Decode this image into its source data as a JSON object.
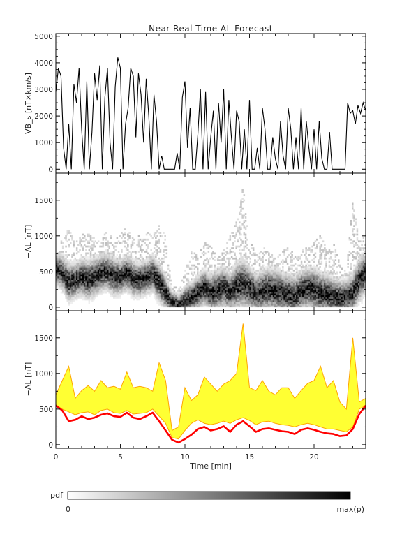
{
  "title": "Near Real Time AL Forecast",
  "colorbar": {
    "label": "pdf",
    "min_label": "0",
    "max_label": "max(p)",
    "colors": [
      "#ffffff",
      "#000000"
    ]
  },
  "colors": {
    "vbs_line": "#000000",
    "forecast_band": "#ffff33",
    "forecast_band_edge": "#ffa500",
    "forecast_median": "#ff0000"
  },
  "chart_data": [
    {
      "type": "line",
      "title": "Near Real Time AL Forecast",
      "ylabel": "VB_s [nT×km/s]",
      "xlabel": "",
      "xlim": [
        0,
        24
      ],
      "ylim": [
        -150,
        5100
      ],
      "yticks": [
        "0",
        "1000",
        "2000",
        "3000",
        "4000",
        "5000"
      ],
      "grid": false,
      "series": [
        {
          "x": [
            0,
            0.2,
            0.4,
            0.6,
            0.8,
            1.0,
            1.2,
            1.4,
            1.6,
            1.8,
            2.0,
            2.2,
            2.4,
            2.6,
            2.8,
            3.0,
            3.2,
            3.4,
            3.6,
            3.8,
            4.0,
            4.2,
            4.4,
            4.6,
            4.8,
            5.0,
            5.2,
            5.4,
            5.6,
            5.8,
            6.0,
            6.2,
            6.4,
            6.6,
            6.8,
            7.0,
            7.2,
            7.4,
            7.6,
            7.8,
            8.0,
            8.2,
            8.4,
            8.6,
            8.8,
            9.0,
            9.2,
            9.4,
            9.6,
            9.8,
            10.0,
            10.2,
            10.4,
            10.6,
            10.8,
            11.0,
            11.2,
            11.4,
            11.6,
            11.8,
            12.0,
            12.2,
            12.4,
            12.6,
            12.8,
            13.0,
            13.2,
            13.4,
            13.6,
            13.8,
            14.0,
            14.2,
            14.4,
            14.6,
            14.8,
            15.0,
            15.2,
            15.4,
            15.6,
            15.8,
            16.0,
            16.2,
            16.4,
            16.6,
            16.8,
            17.0,
            17.2,
            17.4,
            17.6,
            17.8,
            18.0,
            18.2,
            18.4,
            18.6,
            18.8,
            19.0,
            19.2,
            19.4,
            19.6,
            19.8,
            20.0,
            20.2,
            20.4,
            20.6,
            20.8,
            21.0,
            21.2,
            21.4,
            21.6,
            21.8,
            22.0,
            22.2,
            22.4,
            22.6,
            22.8,
            23.0,
            23.2,
            23.4,
            23.6,
            23.8,
            24.0
          ],
          "values": [
            2900,
            3800,
            3500,
            800,
            0,
            1700,
            0,
            3200,
            2500,
            3800,
            1500,
            0,
            3300,
            0,
            1400,
            3600,
            2600,
            3900,
            0,
            2700,
            3800,
            1000,
            0,
            3100,
            4200,
            3800,
            0,
            1700,
            2300,
            3800,
            3500,
            1200,
            3600,
            2800,
            1000,
            3400,
            2000,
            0,
            2800,
            1800,
            0,
            500,
            0,
            0,
            0,
            0,
            0,
            600,
            0,
            2700,
            3300,
            800,
            2300,
            0,
            0,
            1300,
            3000,
            0,
            2900,
            0,
            1200,
            2200,
            0,
            2500,
            1000,
            3000,
            0,
            2600,
            1200,
            0,
            2200,
            1800,
            0,
            1500,
            0,
            2600,
            0,
            0,
            800,
            0,
            2300,
            1500,
            0,
            0,
            1200,
            400,
            0,
            1800,
            500,
            0,
            2300,
            1500,
            0,
            1200,
            0,
            2300,
            0,
            1800,
            800,
            0,
            1500,
            0,
            1800,
            400,
            0,
            0,
            1400,
            0,
            0,
            0,
            0,
            0,
            0,
            2500,
            2100,
            2200,
            1700,
            2400,
            2100,
            2500,
            2200
          ]
        }
      ]
    },
    {
      "type": "heatmap",
      "ylabel": "−AL [nT]",
      "xlabel": "",
      "xlim": [
        0,
        24
      ],
      "ylim": [
        -50,
        1880
      ],
      "yticks": [
        "0",
        "500",
        "1000",
        "1500"
      ],
      "grid": false,
      "colorscale": [
        "#ffffff",
        "#000000"
      ],
      "x": [
        0,
        0.5,
        1.0,
        1.5,
        2.0,
        2.5,
        3.0,
        3.5,
        4.0,
        4.5,
        5.0,
        5.5,
        6.0,
        6.5,
        7.0,
        7.5,
        8.0,
        8.5,
        9.0,
        9.5,
        10.0,
        10.5,
        11.0,
        11.5,
        12.0,
        12.5,
        13.0,
        13.5,
        14.0,
        14.5,
        15.0,
        15.5,
        16.0,
        16.5,
        17.0,
        17.5,
        18.0,
        18.5,
        19.0,
        19.5,
        20.0,
        20.5,
        21.0,
        21.5,
        22.0,
        22.5,
        23.0,
        23.5,
        24.0
      ],
      "center": [
        540,
        480,
        350,
        380,
        420,
        380,
        420,
        480,
        500,
        430,
        420,
        480,
        400,
        380,
        420,
        470,
        350,
        200,
        70,
        30,
        90,
        130,
        200,
        280,
        200,
        230,
        280,
        200,
        300,
        330,
        270,
        180,
        230,
        250,
        230,
        200,
        180,
        150,
        230,
        260,
        240,
        200,
        180,
        150,
        130,
        140,
        200,
        380,
        480
      ],
      "spread": [
        200,
        220,
        250,
        230,
        240,
        250,
        250,
        240,
        240,
        250,
        220,
        230,
        240,
        220,
        220,
        230,
        250,
        220,
        150,
        130,
        180,
        200,
        220,
        230,
        250,
        260,
        260,
        240,
        300,
        320,
        270,
        250,
        270,
        280,
        280,
        270,
        260,
        260,
        260,
        270,
        280,
        270,
        260,
        240,
        230,
        220,
        260,
        280,
        260
      ],
      "peak": [
        700,
        1000,
        1100,
        900,
        1000,
        1050,
        1000,
        900,
        1100,
        900,
        1050,
        1100,
        950,
        1000,
        1050,
        1000,
        1150,
        1000,
        300,
        250,
        500,
        800,
        750,
        900,
        850,
        700,
        800,
        1000,
        1200,
        1700,
        900,
        800,
        850,
        750,
        700,
        800,
        900,
        700,
        800,
        850,
        900,
        1000,
        800,
        900,
        600,
        500,
        1500,
        900,
        1000
      ]
    },
    {
      "type": "area",
      "xlabel": "Time [min]",
      "ylabel": "−AL [nT]",
      "xlim": [
        0,
        24
      ],
      "ylim": [
        -50,
        1880
      ],
      "xticks": [
        "0",
        "5",
        "10",
        "15",
        "20"
      ],
      "yticks": [
        "0",
        "500",
        "1000",
        "1500"
      ],
      "grid": false,
      "x": [
        0,
        0.5,
        1.0,
        1.5,
        2.0,
        2.5,
        3.0,
        3.5,
        4.0,
        4.5,
        5.0,
        5.5,
        6.0,
        6.5,
        7.0,
        7.5,
        8.0,
        8.5,
        9.0,
        9.5,
        10.0,
        10.5,
        11.0,
        11.5,
        12.0,
        12.5,
        13.0,
        13.5,
        14.0,
        14.5,
        15.0,
        15.5,
        16.0,
        16.5,
        17.0,
        17.5,
        18.0,
        18.5,
        19.0,
        19.5,
        20.0,
        20.5,
        21.0,
        21.5,
        22.0,
        22.5,
        23.0,
        23.5,
        24.0
      ],
      "series": [
        {
          "role": "upper",
          "values": [
            700,
            900,
            1100,
            650,
            760,
            830,
            750,
            900,
            800,
            820,
            780,
            1020,
            800,
            820,
            800,
            750,
            1150,
            900,
            200,
            250,
            800,
            620,
            700,
            950,
            850,
            750,
            850,
            900,
            1000,
            1700,
            800,
            760,
            900,
            750,
            700,
            800,
            800,
            650,
            760,
            860,
            900,
            1100,
            800,
            900,
            600,
            500,
            1500,
            600,
            650
          ]
        },
        {
          "role": "lower",
          "values": [
            560,
            500,
            460,
            420,
            450,
            460,
            420,
            480,
            500,
            450,
            440,
            480,
            430,
            440,
            450,
            500,
            400,
            300,
            100,
            80,
            200,
            300,
            350,
            300,
            280,
            300,
            330,
            300,
            350,
            380,
            340,
            280,
            320,
            330,
            300,
            280,
            270,
            250,
            280,
            300,
            280,
            250,
            220,
            220,
            200,
            180,
            250,
            500,
            550
          ]
        },
        {
          "role": "median",
          "values": [
            550,
            480,
            330,
            350,
            400,
            360,
            380,
            420,
            440,
            400,
            390,
            450,
            380,
            360,
            400,
            450,
            330,
            200,
            70,
            30,
            80,
            140,
            220,
            250,
            200,
            220,
            260,
            180,
            280,
            330,
            260,
            180,
            220,
            230,
            210,
            190,
            180,
            150,
            210,
            230,
            210,
            180,
            160,
            150,
            120,
            130,
            220,
            430,
            550
          ]
        }
      ]
    }
  ]
}
